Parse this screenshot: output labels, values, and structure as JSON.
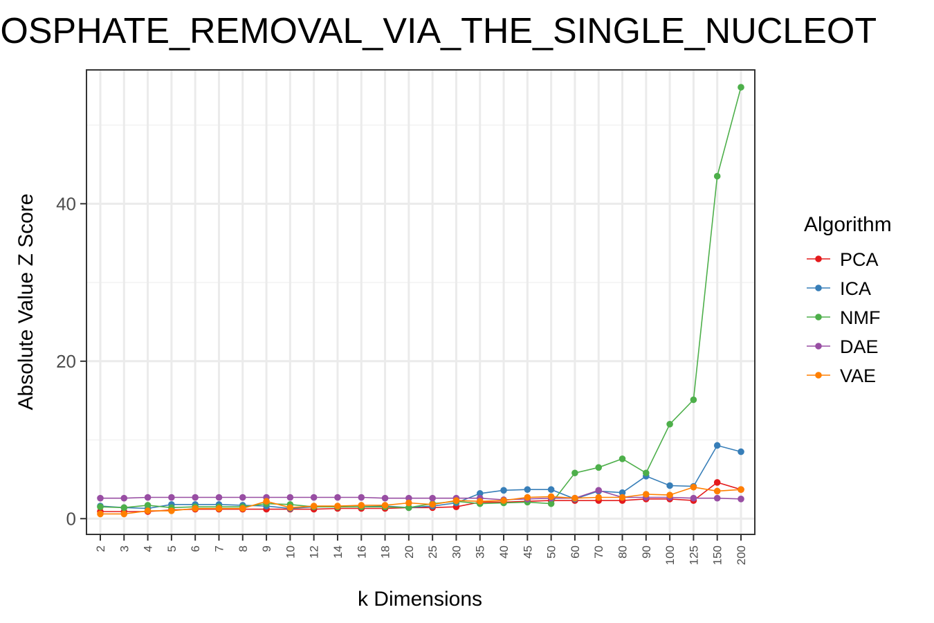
{
  "chart_data": {
    "type": "line",
    "title": "HOSPHATE_REMOVAL_VIA_THE_SINGLE_NUCLEOT",
    "xlabel": "k Dimensions",
    "ylabel": "Absolute Value Z Score",
    "categories": [
      "2",
      "3",
      "4",
      "5",
      "6",
      "7",
      "8",
      "9",
      "10",
      "12",
      "14",
      "16",
      "18",
      "20",
      "25",
      "30",
      "35",
      "40",
      "45",
      "50",
      "60",
      "70",
      "80",
      "90",
      "100",
      "125",
      "150",
      "200"
    ],
    "ylim": [
      -2,
      57
    ],
    "yticks": [
      0,
      20,
      40
    ],
    "ytick_labels": [
      "0",
      "20",
      "40"
    ],
    "grid": true,
    "legend_position": "right",
    "legend_title": "Algorithm",
    "series": [
      {
        "name": "PCA",
        "color": "#E41A1C",
        "values": [
          0.9,
          0.9,
          0.9,
          1.1,
          1.2,
          1.2,
          1.2,
          1.2,
          1.2,
          1.2,
          1.3,
          1.3,
          1.3,
          1.4,
          1.4,
          1.5,
          2.1,
          2.1,
          2.2,
          2.3,
          2.3,
          2.3,
          2.3,
          2.5,
          2.5,
          2.3,
          4.6,
          3.7
        ]
      },
      {
        "name": "ICA",
        "color": "#377EB8",
        "values": [
          1.6,
          1.4,
          1.3,
          1.8,
          1.8,
          1.8,
          1.7,
          1.6,
          1.3,
          1.5,
          1.5,
          1.5,
          1.6,
          1.4,
          1.6,
          2.0,
          3.2,
          3.6,
          3.7,
          3.7,
          2.5,
          3.5,
          3.3,
          5.4,
          4.2,
          4.1,
          9.3,
          8.5
        ]
      },
      {
        "name": "NMF",
        "color": "#4DAF4A",
        "values": [
          1.5,
          1.4,
          1.7,
          1.4,
          1.5,
          1.5,
          1.5,
          1.9,
          1.8,
          1.5,
          1.5,
          1.5,
          1.5,
          1.4,
          1.9,
          2.2,
          1.9,
          2.0,
          2.1,
          1.9,
          5.8,
          6.5,
          7.6,
          5.8,
          12.0,
          15.1,
          43.5,
          54.8
        ]
      },
      {
        "name": "DAE",
        "color": "#984EA3",
        "values": [
          2.6,
          2.6,
          2.7,
          2.7,
          2.7,
          2.7,
          2.7,
          2.7,
          2.7,
          2.7,
          2.7,
          2.7,
          2.6,
          2.6,
          2.6,
          2.6,
          2.6,
          2.4,
          2.5,
          2.6,
          2.6,
          3.6,
          2.7,
          2.7,
          2.7,
          2.6,
          2.6,
          2.5
        ]
      },
      {
        "name": "VAE",
        "color": "#FF7F00",
        "values": [
          0.6,
          0.6,
          1.0,
          1.0,
          1.3,
          1.3,
          1.3,
          2.2,
          1.4,
          1.6,
          1.6,
          1.7,
          1.7,
          2.0,
          1.8,
          2.3,
          2.2,
          2.3,
          2.7,
          2.8,
          2.6,
          2.7,
          2.7,
          3.1,
          3.0,
          4.0,
          3.5,
          3.7
        ]
      }
    ]
  }
}
